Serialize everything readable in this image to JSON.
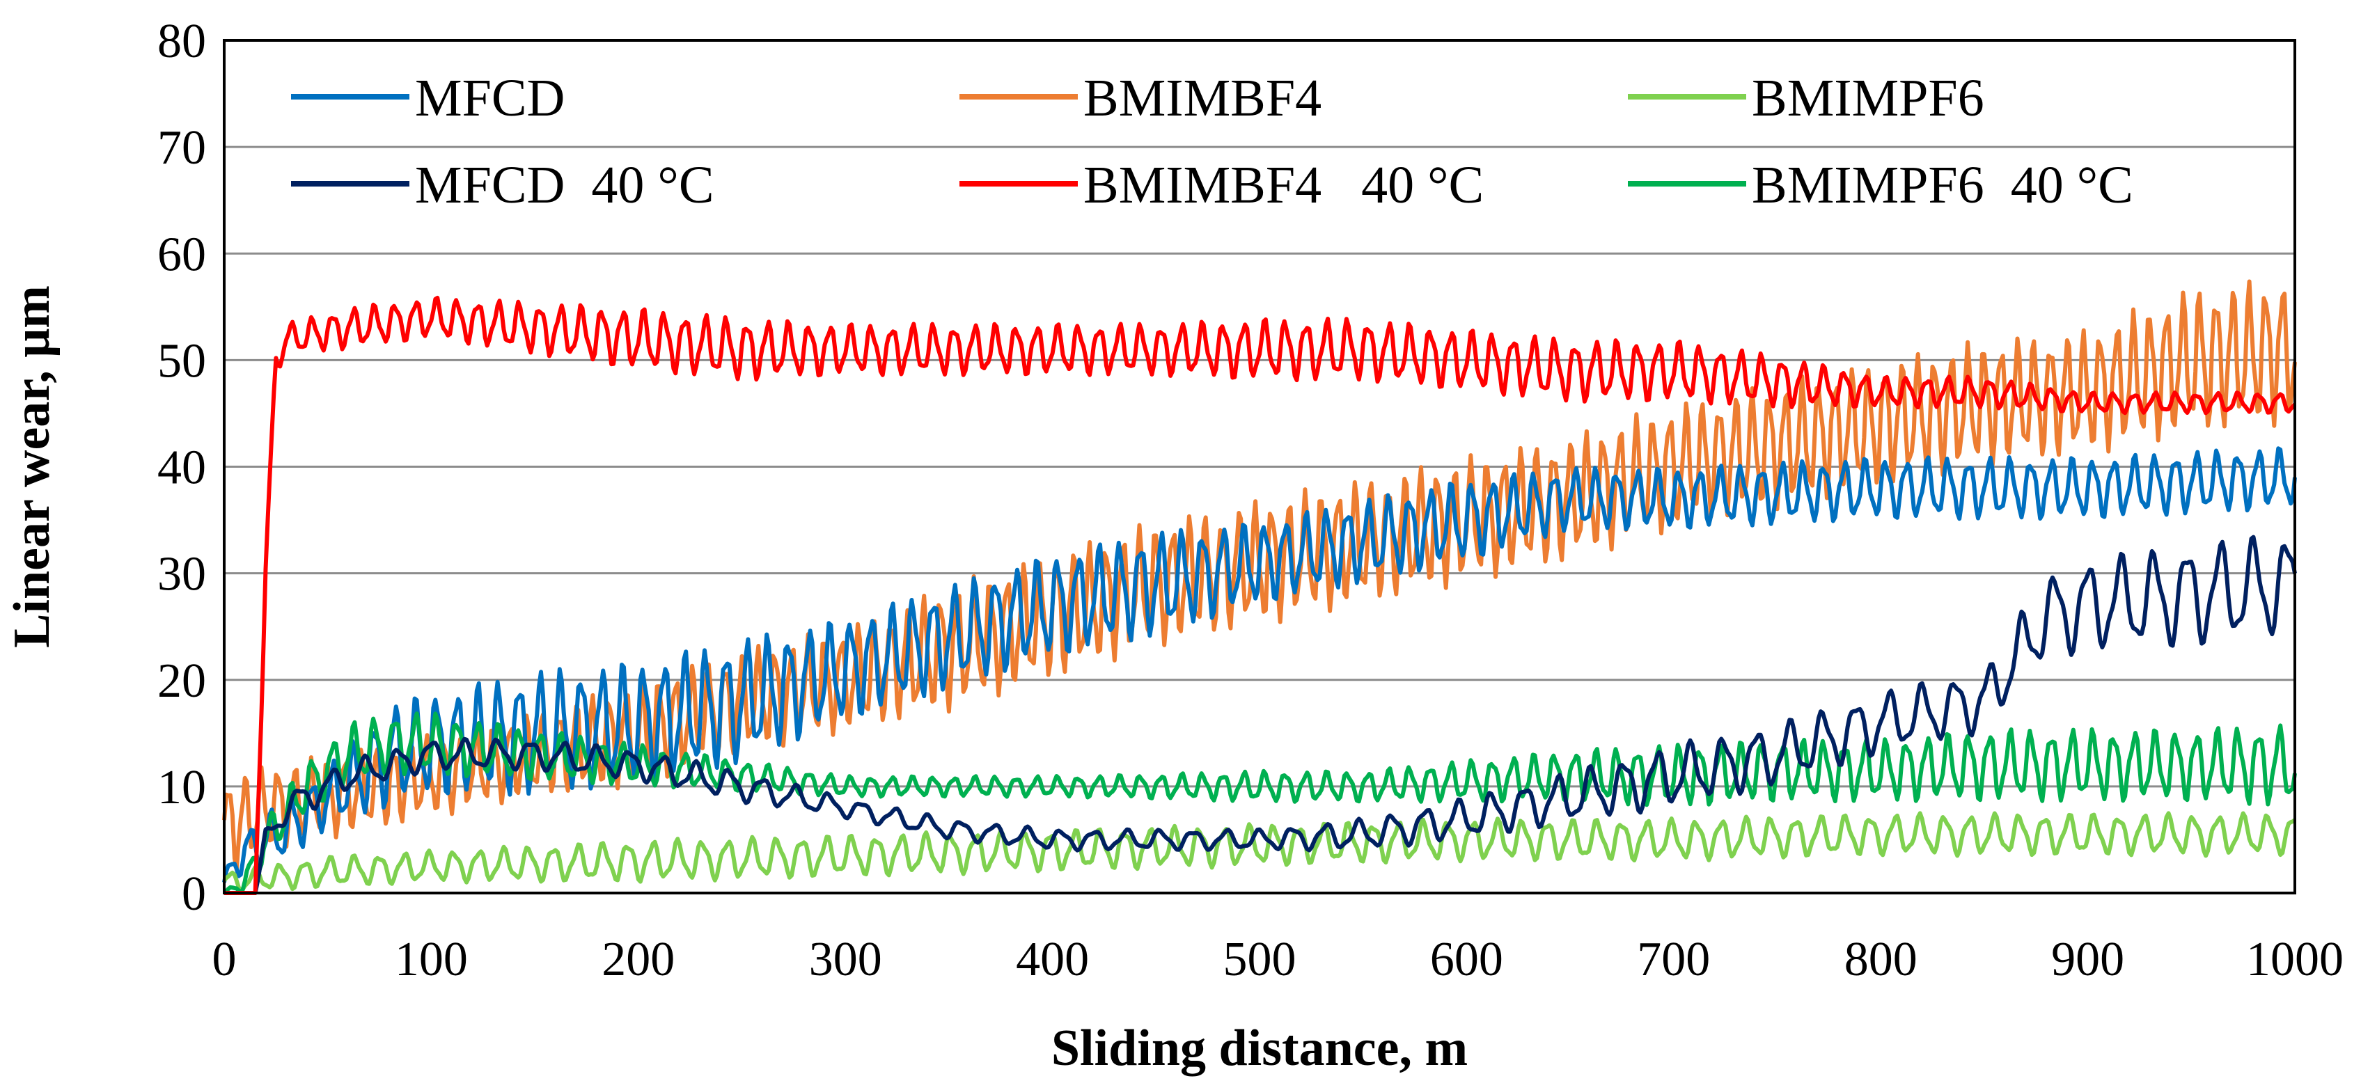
{
  "chart_data": {
    "type": "line",
    "xlabel": "Sliding distance, m",
    "ylabel": "Linear wear, μm",
    "xlim": [
      0,
      1000
    ],
    "ylim": [
      0,
      80
    ],
    "x_ticks": [
      0,
      100,
      200,
      300,
      400,
      500,
      600,
      700,
      800,
      900,
      1000
    ],
    "y_ticks": [
      0,
      10,
      20,
      30,
      40,
      50,
      60,
      70,
      80
    ],
    "grid": "horizontal",
    "legend_position": "top",
    "series": [
      {
        "name": "MFCD",
        "color": "#0070C0",
        "osc_period": 10,
        "x": [
          0,
          10,
          30,
          50,
          80,
          100,
          150,
          200,
          250,
          300,
          350,
          400,
          450,
          500,
          550,
          600,
          650,
          700,
          800,
          900,
          1000
        ],
        "center": [
          1,
          4,
          6,
          9,
          13,
          14,
          15,
          16,
          18,
          21,
          24,
          27,
          29,
          31,
          33,
          35,
          37,
          37,
          38,
          38,
          39
        ],
        "amplitude": [
          1,
          2,
          3,
          3,
          5,
          5,
          6,
          6,
          6,
          5,
          5,
          5,
          5,
          4,
          4,
          4,
          3,
          3,
          3,
          3,
          3
        ]
      },
      {
        "name": "BMIMBF4",
        "color": "#ED7D31",
        "osc_period": 8,
        "x": [
          0,
          20,
          50,
          100,
          150,
          200,
          250,
          300,
          350,
          400,
          450,
          500,
          550,
          600,
          650,
          700,
          750,
          800,
          850,
          900,
          950,
          1000
        ],
        "center": [
          6,
          8,
          9,
          11,
          13,
          15,
          18,
          20,
          23,
          26,
          29,
          31,
          33,
          35,
          37,
          40,
          42,
          44,
          46,
          47,
          50,
          51
        ],
        "amplitude": [
          5,
          4,
          4,
          4,
          4,
          5,
          5,
          5,
          6,
          6,
          6,
          6,
          6,
          6,
          6,
          6,
          6,
          6,
          6,
          6,
          7,
          7
        ]
      },
      {
        "name": "BMIMPF6",
        "color": "#7FD14F",
        "osc_period": 12,
        "x": [
          0,
          50,
          100,
          200,
          300,
          400,
          500,
          600,
          700,
          800,
          900,
          1000
        ],
        "center": [
          1,
          2,
          2.5,
          3,
          3.5,
          4,
          4.5,
          5,
          5,
          5.5,
          5.5,
          5.5
        ],
        "amplitude": [
          1,
          1.5,
          1.5,
          2,
          2,
          2,
          2,
          2,
          2,
          2,
          2,
          2
        ]
      },
      {
        "name": "MFCD  40 °C",
        "color": "#002060",
        "osc_period": 16,
        "x": [
          0,
          15,
          20,
          30,
          60,
          100,
          150,
          200,
          250,
          300,
          350,
          400,
          450,
          500,
          550,
          600,
          650,
          700,
          750,
          800,
          850,
          880,
          900,
          950,
          1000
        ],
        "center": [
          0,
          0,
          5,
          8,
          11,
          13,
          13,
          12,
          10,
          8,
          6,
          5,
          5,
          5,
          5.5,
          7,
          9,
          11,
          13,
          16,
          18,
          26,
          27,
          28,
          29
        ],
        "amplitude": [
          0,
          0,
          1,
          1.5,
          1.5,
          1.5,
          1.5,
          1.5,
          1.5,
          1,
          1,
          1,
          1,
          1,
          1.5,
          2,
          2.5,
          3,
          3,
          3,
          3,
          4,
          4.5,
          5,
          5
        ]
      },
      {
        "name": "BMIMBF4   40 °C",
        "color": "#FF0000",
        "osc_period": 10,
        "x": [
          0,
          15,
          20,
          25,
          30,
          60,
          100,
          150,
          200,
          250,
          300,
          350,
          400,
          450,
          500,
          550,
          600,
          650,
          700,
          750,
          800,
          850,
          900,
          950,
          1000
        ],
        "center": [
          0,
          0,
          30,
          50,
          52,
          53,
          54,
          53,
          52,
          51,
          51,
          51,
          51,
          51,
          51,
          51,
          50,
          49,
          49,
          48,
          47,
          47,
          46,
          46,
          46
        ],
        "amplitude": [
          0,
          0,
          2,
          1.5,
          1.5,
          2,
          2,
          2.5,
          3,
          3,
          2.5,
          2.5,
          2.5,
          2.5,
          3,
          3,
          3,
          3,
          3,
          2.5,
          1.5,
          1.5,
          1,
          1,
          1
        ]
      },
      {
        "name": "BMIMPF6  40 °C",
        "color": "#00B050",
        "osc_period": 10,
        "x": [
          0,
          10,
          20,
          40,
          60,
          80,
          100,
          150,
          200,
          250,
          300,
          350,
          400,
          450,
          500,
          550,
          600,
          650,
          700,
          750,
          800,
          850,
          900,
          950,
          1000
        ],
        "center": [
          0,
          1,
          5,
          10,
          13,
          14,
          14,
          13,
          12,
          11,
          10,
          10,
          10,
          10,
          10,
          10,
          10.5,
          11,
          11,
          11.5,
          11.5,
          12,
          12,
          12,
          12
        ],
        "amplitude": [
          0,
          1,
          2,
          2.5,
          3,
          3,
          3,
          2.5,
          2,
          1.5,
          1,
          1,
          1,
          1.2,
          1.5,
          1.5,
          2,
          2.5,
          3,
          3,
          3,
          3.5,
          3.5,
          3.5,
          4
        ]
      }
    ]
  }
}
